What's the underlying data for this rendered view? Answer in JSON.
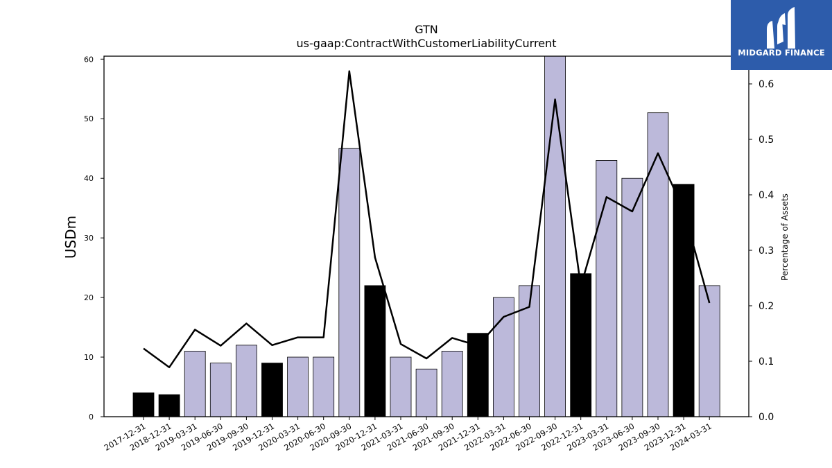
{
  "chart_data": {
    "type": "bar",
    "title": "GTN",
    "subtitle": "us-gaap:ContractWithCustomerLiabilityCurrent",
    "ylabel": "USDm",
    "y2label": "Percentage of Assets",
    "categories": [
      "2017-12-31",
      "2018-12-31",
      "2019-03-31",
      "2019-06-30",
      "2019-09-30",
      "2019-12-31",
      "2020-03-31",
      "2020-06-30",
      "2020-09-30",
      "2020-12-31",
      "2021-03-31",
      "2021-06-30",
      "2021-09-30",
      "2021-12-31",
      "2022-03-31",
      "2022-06-30",
      "2022-09-30",
      "2022-12-31",
      "2023-03-31",
      "2023-06-30",
      "2023-09-30",
      "2023-12-31",
      "2024-03-31"
    ],
    "series": [
      {
        "values": [
          4.0,
          3.7,
          11.0,
          9.0,
          12.0,
          9.0,
          10.0,
          10.0,
          45.0,
          22.0,
          10.0,
          8.0,
          11.0,
          14.0,
          20.0,
          22.0,
          60.5,
          24.0,
          43.0,
          40.0,
          51.0,
          39.0,
          22.0
        ],
        "bar_kinds": [
          "annual",
          "annual",
          "quarterly",
          "quarterly",
          "quarterly",
          "annual",
          "quarterly",
          "quarterly",
          "quarterly",
          "annual",
          "quarterly",
          "quarterly",
          "quarterly",
          "annual",
          "quarterly",
          "quarterly",
          "quarterly",
          "annual",
          "quarterly",
          "quarterly",
          "quarterly",
          "annual",
          "quarterly"
        ],
        "axis": "left"
      },
      {
        "values": [
          0.123,
          0.089,
          0.157,
          0.128,
          0.168,
          0.129,
          0.143,
          0.143,
          0.623,
          0.287,
          0.131,
          0.105,
          0.142,
          0.128,
          0.18,
          0.198,
          0.572,
          0.235,
          0.396,
          0.37,
          0.475,
          0.372,
          0.205
        ],
        "axis": "right"
      }
    ],
    "ylim": [
      0,
      60.5
    ],
    "y2lim": [
      0,
      0.65
    ],
    "yticks": [
      0,
      10,
      20,
      30,
      40,
      50,
      60
    ],
    "y2ticks": [
      "0.0",
      "0.1",
      "0.2",
      "0.3",
      "0.4",
      "0.5",
      "0.6"
    ],
    "colors": {
      "annual": "#000000",
      "quarterly": "#bcb9da",
      "line": "#000000"
    },
    "grid": false
  },
  "logo": {
    "text": "MIDGARD FINANCE",
    "color": "#2d5cab"
  }
}
